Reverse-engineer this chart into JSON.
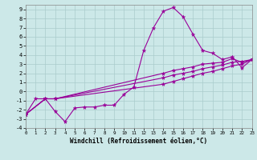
{
  "xlabel": "Windchill (Refroidissement éolien,°C)",
  "bg_color": "#cce8e8",
  "grid_color": "#aacccc",
  "line_color": "#990099",
  "xlim": [
    0,
    23
  ],
  "ylim": [
    -4,
    9.5
  ],
  "xticks": [
    0,
    1,
    2,
    3,
    4,
    5,
    6,
    7,
    8,
    9,
    10,
    11,
    12,
    13,
    14,
    15,
    16,
    17,
    18,
    19,
    20,
    21,
    22,
    23
  ],
  "yticks": [
    -4,
    -3,
    -2,
    -1,
    0,
    1,
    2,
    3,
    4,
    5,
    6,
    7,
    8,
    9
  ],
  "series": [
    {
      "x": [
        0,
        1,
        2,
        3,
        4,
        5,
        6,
        7,
        8,
        9,
        10,
        11,
        12,
        13,
        14,
        15,
        16,
        17,
        18,
        19,
        20,
        21,
        22,
        23
      ],
      "y": [
        -2.5,
        -0.8,
        -0.8,
        -2.2,
        -3.3,
        -1.8,
        -1.7,
        -1.7,
        -1.5,
        -1.5,
        -0.3,
        0.5,
        4.5,
        7.0,
        8.8,
        9.2,
        8.2,
        6.3,
        4.5,
        4.2,
        3.5,
        3.8,
        2.6,
        3.5
      ]
    },
    {
      "x": [
        0,
        2,
        3,
        14,
        15,
        16,
        17,
        18,
        19,
        20,
        21,
        22,
        23
      ],
      "y": [
        -2.5,
        -0.8,
        -0.8,
        2.0,
        2.3,
        2.5,
        2.7,
        3.0,
        3.1,
        3.2,
        3.6,
        3.2,
        3.5
      ]
    },
    {
      "x": [
        0,
        2,
        3,
        14,
        15,
        16,
        17,
        18,
        19,
        20,
        21,
        22,
        23
      ],
      "y": [
        -2.5,
        -0.8,
        -0.8,
        1.5,
        1.8,
        2.0,
        2.2,
        2.5,
        2.7,
        2.9,
        3.2,
        3.3,
        3.5
      ]
    },
    {
      "x": [
        0,
        2,
        3,
        14,
        15,
        16,
        17,
        18,
        19,
        20,
        21,
        22,
        23
      ],
      "y": [
        -2.5,
        -0.8,
        -0.8,
        0.8,
        1.1,
        1.4,
        1.7,
        2.0,
        2.2,
        2.5,
        2.8,
        3.0,
        3.5
      ]
    }
  ]
}
